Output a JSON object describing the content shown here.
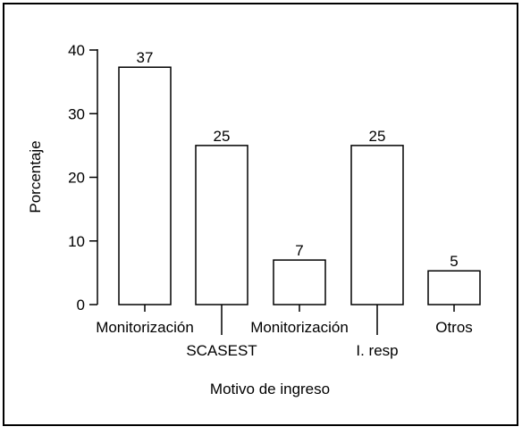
{
  "chart_data": {
    "type": "bar",
    "categories": [
      "Monitorización",
      "SCASEST",
      "Monitorización",
      "I. resp",
      "Otros"
    ],
    "values": [
      37.3,
      25,
      7,
      25,
      5.3
    ],
    "data_labels": [
      "37",
      "25",
      "7",
      "25",
      "5"
    ],
    "xlabel": "Motivo de ingreso",
    "ylabel": "Porcentaje",
    "ylim": [
      0,
      40
    ],
    "yticks": [
      0,
      10,
      20,
      30,
      40
    ],
    "grid": false,
    "legend": "none",
    "colors": {
      "bar_fill": "#ffffff",
      "bar_stroke": "#000000",
      "axis": "#000000",
      "frame": "#000000"
    }
  }
}
